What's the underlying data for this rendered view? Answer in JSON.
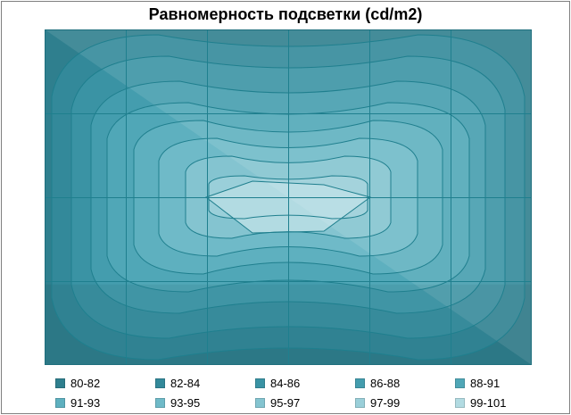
{
  "chart_data": {
    "type": "contour",
    "title": "Равномерность подсветки (cd/m2)",
    "grid": true,
    "legend_position": "bottom",
    "bands": [
      {
        "label": "80-82",
        "color": "#2f7f8e"
      },
      {
        "label": "82-84",
        "color": "#33899a"
      },
      {
        "label": "84-86",
        "color": "#3a93a4"
      },
      {
        "label": "86-88",
        "color": "#449dae"
      },
      {
        "label": "88-91",
        "color": "#50a7b7"
      },
      {
        "label": "91-93",
        "color": "#5eb0bf"
      },
      {
        "label": "93-95",
        "color": "#6fbac8"
      },
      {
        "label": "95-97",
        "color": "#84c4d0"
      },
      {
        "label": "97-99",
        "color": "#9acfd9"
      },
      {
        "label": "99-101",
        "color": "#b2dbe2"
      }
    ]
  }
}
